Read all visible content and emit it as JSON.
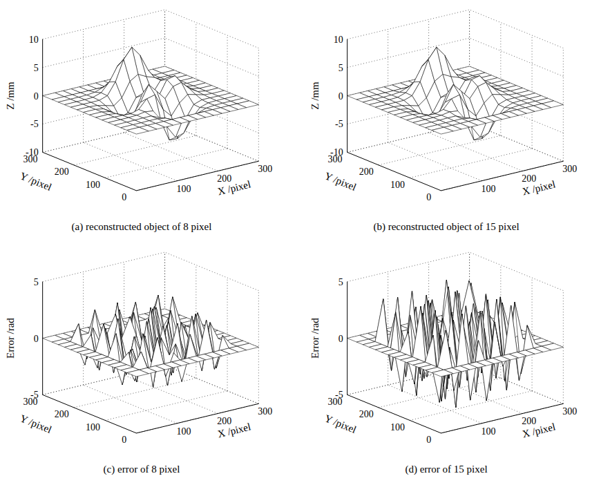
{
  "chart_data": [
    {
      "type": "surface",
      "title": "(a) reconstructed object of 8 pixel",
      "x_label": "X /pixel",
      "y_label": "Y /pixel",
      "z_label": "Z /mm",
      "xlim": [
        0,
        300
      ],
      "ylim": [
        0,
        300
      ],
      "zlim": [
        -10,
        10
      ],
      "xticks": [
        100,
        200,
        300
      ],
      "yticks": [
        0,
        100,
        200,
        300
      ],
      "zticks": [
        -10,
        -5,
        0,
        5,
        10
      ],
      "grid": true,
      "x": [
        0,
        30,
        50,
        70,
        90,
        110,
        130,
        150,
        170,
        190,
        210,
        230,
        250,
        270,
        300
      ],
      "y": [
        0,
        30,
        50,
        70,
        90,
        110,
        130,
        150,
        170,
        190,
        210,
        230,
        250,
        270,
        300
      ],
      "z": [
        [
          0,
          0,
          0,
          0,
          0,
          0,
          0,
          0,
          0,
          0,
          0,
          0,
          0,
          0,
          0
        ],
        [
          0,
          0,
          0,
          0,
          0,
          0,
          0,
          0,
          0,
          0,
          0,
          0,
          0,
          0,
          0
        ],
        [
          0,
          0,
          0,
          0.02,
          0,
          -0.23,
          -0.91,
          -1.57,
          -1.41,
          -0.69,
          -0.18,
          -0.03,
          0,
          0,
          0
        ],
        [
          0,
          0,
          0.01,
          0.05,
          0.05,
          -0.59,
          -2.64,
          -4.75,
          -4.34,
          -2.1,
          -0.53,
          -0.06,
          0,
          0,
          0
        ],
        [
          0,
          0,
          0.01,
          0.08,
          0.33,
          0.15,
          -2.19,
          -5.68,
          -5.76,
          -2.63,
          -0.44,
          0.04,
          0.03,
          0,
          0
        ],
        [
          0,
          0,
          -0.06,
          -0.13,
          0.3,
          1.86,
          2.22,
          -0.72,
          -2.22,
          -0.27,
          0.88,
          0.5,
          0.11,
          0,
          0
        ],
        [
          0,
          0,
          -0.2,
          -0.8,
          -1.21,
          0.8,
          3.55,
          2,
          0.39,
          2.2,
          2.56,
          1.12,
          0.24,
          0,
          0
        ],
        [
          0,
          0,
          -0.3,
          -1.33,
          -2.77,
          -1.65,
          1.48,
          0.98,
          0.37,
          2.94,
          3.27,
          1.41,
          0.3,
          0,
          0
        ],
        [
          0,
          0,
          -0.25,
          -1.12,
          -2.49,
          -2,
          0.39,
          0.46,
          0.37,
          2.38,
          2.56,
          1.09,
          0.23,
          0,
          0
        ],
        [
          0,
          0,
          -0.11,
          -0.48,
          -0.86,
          0.23,
          2.79,
          3.69,
          2.94,
          2.43,
          1.58,
          0.58,
          0.11,
          0,
          0
        ],
        [
          0,
          0,
          -0.02,
          -0.01,
          0.48,
          2.61,
          6.2,
          8,
          6.25,
          3.25,
          1.19,
          0.29,
          0.05,
          0,
          0
        ],
        [
          0,
          0,
          0.01,
          0.08,
          0.55,
          2.1,
          4.55,
          5.85,
          4.56,
          2.21,
          0.68,
          0.13,
          0.02,
          0,
          0
        ],
        [
          0,
          0,
          0,
          0.03,
          0.19,
          0.69,
          1.47,
          1.88,
          1.47,
          0.7,
          0.2,
          0.04,
          0,
          0,
          0
        ],
        [
          0,
          0,
          0,
          0,
          0,
          0,
          0,
          0,
          0,
          0,
          0,
          0,
          0,
          0,
          0
        ],
        [
          0,
          0,
          0,
          0,
          0,
          0,
          0,
          0,
          0,
          0,
          0,
          0,
          0,
          0,
          0
        ]
      ]
    },
    {
      "type": "surface",
      "title": "(b) reconstructed object of 15 pixel",
      "x_label": "X /pixel",
      "y_label": "Y /pixel",
      "z_label": "Z /mm",
      "xlim": [
        0,
        300
      ],
      "ylim": [
        0,
        300
      ],
      "zlim": [
        -10,
        10
      ],
      "xticks": [
        100,
        200,
        300
      ],
      "yticks": [
        0,
        100,
        200,
        300
      ],
      "zticks": [
        -10,
        -5,
        0,
        5,
        10
      ],
      "grid": true,
      "x": [
        0,
        30,
        50,
        70,
        90,
        110,
        130,
        150,
        170,
        190,
        210,
        230,
        250,
        270,
        300
      ],
      "y": [
        0,
        30,
        50,
        70,
        90,
        110,
        130,
        150,
        170,
        190,
        210,
        230,
        250,
        270,
        300
      ],
      "z": [
        [
          0,
          0,
          0,
          0,
          0,
          0,
          0,
          0,
          0,
          0,
          0,
          0,
          0,
          0,
          0
        ],
        [
          0,
          0,
          0,
          0,
          0,
          0,
          0,
          0,
          0,
          0,
          0,
          0,
          0,
          0,
          0
        ],
        [
          0,
          0,
          0,
          0.02,
          0,
          -0.23,
          -0.91,
          -1.57,
          -1.41,
          -0.69,
          -0.18,
          -0.03,
          0,
          0,
          0
        ],
        [
          0,
          0,
          0.01,
          0.05,
          0.05,
          -0.59,
          -2.64,
          -4.75,
          -4.34,
          -2.1,
          -0.53,
          -0.06,
          0,
          0,
          0
        ],
        [
          0,
          0,
          0.01,
          0.08,
          0.33,
          0.15,
          -2.19,
          -5.68,
          -5.76,
          -2.63,
          -0.44,
          0.04,
          0.03,
          0,
          0
        ],
        [
          0,
          0,
          -0.06,
          -0.13,
          0.3,
          1.86,
          2.22,
          -0.72,
          -2.22,
          -0.27,
          0.88,
          0.5,
          0.11,
          0,
          0
        ],
        [
          0,
          0,
          -0.2,
          -0.8,
          -1.21,
          0.8,
          3.55,
          2,
          0.39,
          2.2,
          2.56,
          1.12,
          0.24,
          0,
          0
        ],
        [
          0,
          0,
          -0.3,
          -1.33,
          -2.77,
          -1.65,
          1.48,
          0.98,
          0.37,
          2.94,
          3.27,
          1.41,
          0.3,
          0,
          0
        ],
        [
          0,
          0,
          -0.25,
          -1.12,
          -2.49,
          -2,
          0.39,
          0.46,
          0.37,
          2.38,
          2.56,
          1.09,
          0.23,
          0,
          0
        ],
        [
          0,
          0,
          -0.11,
          -0.48,
          -0.86,
          0.23,
          2.79,
          3.69,
          2.94,
          2.43,
          1.58,
          0.58,
          0.11,
          0,
          0
        ],
        [
          0,
          0,
          -0.02,
          -0.01,
          0.48,
          2.61,
          6.2,
          8,
          6.25,
          3.25,
          1.19,
          0.29,
          0.05,
          0,
          0
        ],
        [
          0,
          0,
          0.01,
          0.08,
          0.55,
          2.1,
          4.55,
          5.85,
          4.56,
          2.21,
          0.68,
          0.13,
          0.02,
          0,
          0
        ],
        [
          0,
          0,
          0,
          0.03,
          0.19,
          0.69,
          1.47,
          1.88,
          1.47,
          0.7,
          0.2,
          0.04,
          0,
          0,
          0
        ],
        [
          0,
          0,
          0,
          0,
          0,
          0,
          0,
          0,
          0,
          0,
          0,
          0,
          0,
          0,
          0
        ],
        [
          0,
          0,
          0,
          0,
          0,
          0,
          0,
          0,
          0,
          0,
          0,
          0,
          0,
          0,
          0
        ]
      ]
    },
    {
      "type": "surface",
      "title": "(c) error of 8 pixel",
      "x_label": "X /pixel",
      "y_label": "Y /pixel",
      "z_label": "Error /rad",
      "xlim": [
        0,
        300
      ],
      "ylim": [
        0,
        300
      ],
      "zlim": [
        -5,
        5
      ],
      "xticks": [
        100,
        200,
        300
      ],
      "yticks": [
        0,
        100,
        200,
        300
      ],
      "zticks": [
        -5,
        0,
        5
      ],
      "grid": true,
      "x": [
        0,
        30,
        50,
        70,
        90,
        110,
        130,
        150,
        170,
        190,
        210,
        230,
        250,
        270,
        300
      ],
      "y": [
        0,
        30,
        50,
        70,
        90,
        110,
        130,
        150,
        170,
        190,
        210,
        230,
        250,
        270,
        300
      ],
      "z": [
        [
          0,
          0,
          0,
          0,
          0,
          0,
          0,
          0,
          0,
          0,
          0,
          0,
          0,
          0,
          0
        ],
        [
          0,
          0,
          0,
          0,
          0,
          0,
          0,
          0,
          0,
          0,
          0,
          0,
          0,
          0,
          0
        ],
        [
          0,
          0,
          1.2,
          -0.8,
          2.1,
          -1.5,
          0.4,
          -2.3,
          1.7,
          -0.6,
          2.6,
          -1.9,
          0.9,
          0,
          0
        ],
        [
          0,
          0,
          -1.6,
          2.4,
          -0.3,
          1.1,
          -2.7,
          0.8,
          -1.2,
          2.9,
          -0.5,
          1.4,
          -2.2,
          0,
          0
        ],
        [
          0,
          0,
          0.7,
          -2.1,
          1.8,
          -2.9,
          1.3,
          -0.4,
          2.2,
          -1.7,
          0.3,
          -2.5,
          1.6,
          0,
          0
        ],
        [
          0,
          0,
          -2.4,
          0.5,
          -1.4,
          2.7,
          -0.9,
          1.9,
          -2.6,
          0.6,
          -1.8,
          2.3,
          -0.7,
          0,
          0
        ],
        [
          0,
          0,
          1.9,
          -1.3,
          0.2,
          -2,
          2.5,
          -1.6,
          0.9,
          -2.8,
          1.5,
          -0.3,
          2,
          0,
          0
        ],
        [
          0,
          0,
          -0.5,
          2.8,
          -2.3,
          0.9,
          -1.1,
          3.1,
          -1.9,
          1.2,
          -2.4,
          0.8,
          -1.5,
          0,
          0
        ],
        [
          0,
          0,
          2.3,
          -0.7,
          1.4,
          -1.8,
          0.6,
          -2.2,
          2.6,
          -0.9,
          1.1,
          -2.7,
          0.4,
          0,
          0
        ],
        [
          0,
          0,
          -1.8,
          1.5,
          -2.6,
          0.3,
          2,
          -0.8,
          -1.4,
          2.4,
          -2.1,
          1.7,
          -0.9,
          0,
          0
        ],
        [
          0,
          0,
          0.9,
          -2.4,
          0.7,
          2.2,
          -1.7,
          1,
          -2.9,
          0.5,
          1.9,
          -1.2,
          2.5,
          0,
          0
        ],
        [
          0,
          0,
          -2,
          1.1,
          -0.6,
          -1.3,
          2.8,
          -2.5,
          1.6,
          -1.1,
          -0.4,
          2.6,
          -1.7,
          0,
          0
        ],
        [
          0,
          0,
          1.4,
          -1.9,
          2.3,
          -0.2,
          -1,
          1.8,
          -0.7,
          2.1,
          -2.3,
          0.6,
          -1.1,
          0,
          0
        ],
        [
          0,
          0,
          0,
          0,
          0,
          0,
          0,
          0,
          0,
          0,
          0,
          0,
          0,
          0,
          0
        ],
        [
          0,
          0,
          0,
          0,
          0,
          0,
          0,
          0,
          0,
          0,
          0,
          0,
          0,
          0,
          0
        ]
      ]
    },
    {
      "type": "surface",
      "title": "(d) error of 15 pixel",
      "x_label": "X /pixel",
      "y_label": "Y /pixel",
      "z_label": "Error /rad",
      "xlim": [
        0,
        300
      ],
      "ylim": [
        0,
        300
      ],
      "zlim": [
        -5,
        5
      ],
      "xticks": [
        100,
        200,
        300
      ],
      "yticks": [
        0,
        100,
        200,
        300
      ],
      "zticks": [
        -5,
        0,
        5
      ],
      "grid": true,
      "x": [
        0,
        30,
        50,
        70,
        90,
        110,
        130,
        150,
        170,
        190,
        210,
        230,
        250,
        270,
        300
      ],
      "y": [
        0,
        30,
        50,
        70,
        90,
        110,
        130,
        150,
        170,
        190,
        210,
        230,
        250,
        270,
        300
      ],
      "z": [
        [
          0,
          0,
          0,
          0,
          0,
          0,
          0,
          0,
          0,
          0,
          0,
          0,
          0,
          0,
          0
        ],
        [
          0,
          0,
          0,
          0,
          0,
          0,
          0,
          0,
          0,
          0,
          0,
          0,
          0,
          0,
          0
        ],
        [
          0,
          0,
          3.1,
          -2.4,
          4.2,
          -3.6,
          1.5,
          -4,
          2.8,
          -1.3,
          3.9,
          -2.9,
          1.8,
          0,
          0
        ],
        [
          0,
          0,
          -3.5,
          1.9,
          -4.3,
          2.6,
          -1.1,
          3.7,
          -2.2,
          4.4,
          -3,
          0.9,
          -2.7,
          0,
          0
        ],
        [
          0,
          0,
          2.2,
          -3.8,
          0.8,
          -2,
          4.1,
          -1.6,
          3.3,
          -3.9,
          2.5,
          -4.2,
          3.4,
          0,
          0
        ],
        [
          0,
          0,
          -1.7,
          4,
          -2.9,
          3.5,
          -3.3,
          2.1,
          -4.1,
          1.4,
          -2.6,
          3.8,
          -0.8,
          0,
          0
        ],
        [
          0,
          0,
          4.3,
          -1.2,
          3,
          -4.4,
          2.4,
          -0.7,
          1.9,
          -3.2,
          4,
          -1.9,
          2.9,
          0,
          0
        ],
        [
          0,
          0,
          -2.8,
          3.3,
          -1.5,
          1.2,
          -3.9,
          4.5,
          -2.7,
          2.3,
          -1.4,
          3.1,
          -4,
          0,
          0
        ],
        [
          0,
          0,
          1.6,
          -4.2,
          3.7,
          -2.5,
          0.6,
          -3.4,
          4.2,
          -1.8,
          2.7,
          -3.6,
          1.3,
          0,
          0
        ],
        [
          0,
          0,
          -3.9,
          2.7,
          -0.9,
          4.1,
          -2.3,
          1.7,
          -1,
          3.6,
          -4.3,
          2,
          -2.1,
          0,
          0
        ],
        [
          0,
          0,
          2.9,
          -1.7,
          4.4,
          -3.1,
          3.2,
          -2.8,
          0.5,
          -2.4,
          1.2,
          4.1,
          -3.3,
          0,
          0
        ],
        [
          0,
          0,
          -1.2,
          3.8,
          -3.4,
          0.7,
          -4.1,
          2.6,
          -3.7,
          4.3,
          -2,
          -0.6,
          3.5,
          0,
          0
        ],
        [
          0,
          0,
          3.6,
          -2.9,
          1.1,
          -1.8,
          2.2,
          -4.3,
          2.5,
          -0.8,
          3.3,
          -2.6,
          1,
          0,
          0
        ],
        [
          0,
          0,
          0,
          0,
          0,
          0,
          0,
          0,
          0,
          0,
          0,
          0,
          0,
          0,
          0
        ],
        [
          0,
          0,
          0,
          0,
          0,
          0,
          0,
          0,
          0,
          0,
          0,
          0,
          0,
          0,
          0
        ]
      ]
    }
  ]
}
